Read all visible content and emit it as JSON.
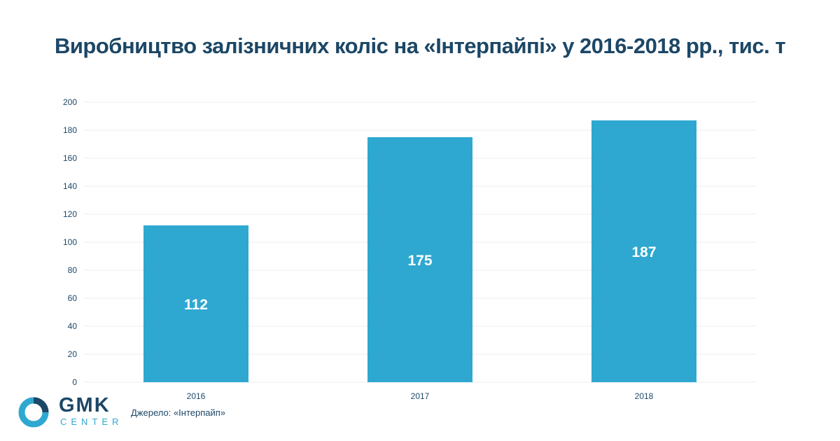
{
  "title": "Виробництво залізничних коліс на «Інтерпайпі» у 2016-2018 рр., тис. т",
  "source": "Джерело: «Інтерпайп»",
  "logo": {
    "name": "GMK",
    "sub": "CENTER",
    "icon": "gmk-ring-logo-icon"
  },
  "colors": {
    "bar": "#2ea8d0",
    "text": "#1c4766",
    "grid": "#ececec"
  },
  "chart_data": {
    "type": "bar",
    "title": "Виробництво залізничних коліс на «Інтерпайпі» у 2016-2018 рр., тис. т",
    "categories": [
      "2016",
      "2017",
      "2018"
    ],
    "values": [
      112,
      175,
      187
    ],
    "data_labels": [
      "112",
      "175",
      "187"
    ],
    "ylim": [
      0,
      200
    ],
    "yticks": [
      0,
      20,
      40,
      60,
      80,
      100,
      120,
      140,
      160,
      180,
      200
    ],
    "grid": true,
    "legend": "none"
  }
}
